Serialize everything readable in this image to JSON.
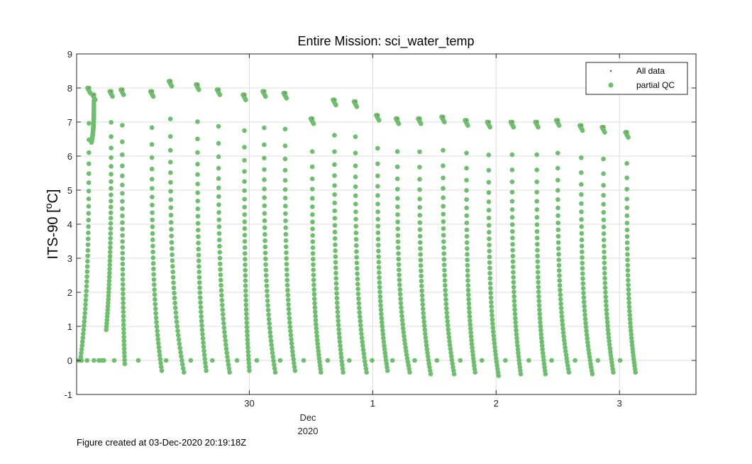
{
  "chart_data": {
    "type": "scatter",
    "title": "Entire Mission: sci_water_temp",
    "ylabel": "ITS-90 [°C]",
    "ylabel_main": "ITS-90 [",
    "ylabel_sup": "o",
    "ylabel_unit": "C]",
    "xlim": [
      28.6,
      3.62
    ],
    "ylim": [
      -1,
      9
    ],
    "grid": true,
    "legend_position": "top-right",
    "x_ticks": [
      {
        "value": 30,
        "label": "30"
      },
      {
        "value": 1,
        "label": "1"
      },
      {
        "value": 2,
        "label": "2"
      },
      {
        "value": 3,
        "label": "3"
      }
    ],
    "y_ticks": [
      {
        "value": 9,
        "label": "9"
      },
      {
        "value": 8,
        "label": "8"
      },
      {
        "value": 7,
        "label": "7"
      },
      {
        "value": 6,
        "label": "6"
      },
      {
        "value": 5,
        "label": "5"
      },
      {
        "value": 4,
        "label": "4"
      },
      {
        "value": 3,
        "label": "3"
      },
      {
        "value": 2,
        "label": "2"
      },
      {
        "value": 1,
        "label": "1"
      },
      {
        "value": 0,
        "label": "0"
      },
      {
        "value": -1,
        "label": "-1"
      }
    ],
    "x_sublabels": [
      "Dec",
      "2020"
    ],
    "series": [
      {
        "name": "All data",
        "color": "#e02020",
        "marker": "dot"
      },
      {
        "name": "partial QC",
        "color": "#6cbf6c",
        "marker": "circle"
      }
    ],
    "dive_cycles": [
      {
        "top_day": 28.7,
        "bottom_day": 28.63,
        "top_temp": 8.0,
        "bottom_temp": 0.0
      },
      {
        "top_day": 28.74,
        "bottom_day": 28.72,
        "top_temp": 7.8,
        "bottom_temp": 6.4
      },
      {
        "top_day": 28.88,
        "bottom_day": 28.84,
        "top_temp": 7.9,
        "bottom_temp": 0.9
      },
      {
        "top_day": 28.97,
        "bottom_day": 28.99,
        "top_temp": 7.95,
        "bottom_temp": -0.1
      },
      {
        "top_day": 29.21,
        "bottom_day": 29.29,
        "top_temp": 7.9,
        "bottom_temp": -0.3
      },
      {
        "top_day": 29.36,
        "bottom_day": 29.47,
        "top_temp": 8.2,
        "bottom_temp": -0.35
      },
      {
        "top_day": 29.58,
        "bottom_day": 29.65,
        "top_temp": 8.1,
        "bottom_temp": -0.3
      },
      {
        "top_day": 29.75,
        "bottom_day": 29.84,
        "top_temp": 7.95,
        "bottom_temp": -0.35
      },
      {
        "top_day": 29.96,
        "bottom_day": 30.0,
        "top_temp": 7.8,
        "bottom_temp": -0.3
      },
      {
        "top_day": 30.12,
        "bottom_day": 30.21,
        "top_temp": 7.9,
        "bottom_temp": -0.35
      },
      {
        "top_day": 30.29,
        "bottom_day": 30.37,
        "top_temp": 7.85,
        "bottom_temp": -0.3
      },
      {
        "top_day": 30.51,
        "bottom_day": 30.58,
        "top_temp": 7.1,
        "bottom_temp": -0.35
      },
      {
        "top_day": 30.69,
        "bottom_day": 30.76,
        "top_temp": 7.65,
        "bottom_temp": -0.35
      },
      {
        "top_day": 30.86,
        "bottom_day": 30.95,
        "top_temp": 7.6,
        "bottom_temp": -0.35
      },
      {
        "top_day": 31.04,
        "bottom_day": 31.12,
        "top_temp": 7.2,
        "bottom_temp": -0.3
      },
      {
        "top_day": 31.2,
        "bottom_day": 31.3,
        "top_temp": 7.1,
        "bottom_temp": -0.35
      },
      {
        "top_day": 31.38,
        "bottom_day": 31.47,
        "top_temp": 7.1,
        "bottom_temp": -0.4
      },
      {
        "top_day": 31.57,
        "bottom_day": 31.66,
        "top_temp": 7.15,
        "bottom_temp": -0.4
      },
      {
        "top_day": 31.76,
        "bottom_day": 31.83,
        "top_temp": 7.05,
        "bottom_temp": -0.35
      },
      {
        "top_day": 31.94,
        "bottom_day": 32.02,
        "top_temp": 7.0,
        "bottom_temp": -0.45
      },
      {
        "top_day": 32.13,
        "bottom_day": 32.2,
        "top_temp": 7.0,
        "bottom_temp": -0.4
      },
      {
        "top_day": 32.33,
        "bottom_day": 32.4,
        "top_temp": 7.0,
        "bottom_temp": -0.4
      },
      {
        "top_day": 32.5,
        "bottom_day": 32.59,
        "top_temp": 7.05,
        "bottom_temp": -0.35
      },
      {
        "top_day": 32.69,
        "bottom_day": 32.78,
        "top_temp": 6.9,
        "bottom_temp": -0.4
      },
      {
        "top_day": 32.87,
        "bottom_day": 32.95,
        "top_temp": 6.85,
        "bottom_temp": -0.35
      },
      {
        "top_day": 33.06,
        "bottom_day": 33.13,
        "top_temp": 6.7,
        "bottom_temp": -0.35
      }
    ],
    "surface_intervals": [
      {
        "start_day": 28.6,
        "end_day": 28.66,
        "temp": 0.0
      },
      {
        "start_day": 28.74,
        "end_day": 28.83,
        "temp": 0.0
      }
    ]
  },
  "footer": {
    "created": "Figure created at 03-Dec-2020 20:19:18Z"
  }
}
